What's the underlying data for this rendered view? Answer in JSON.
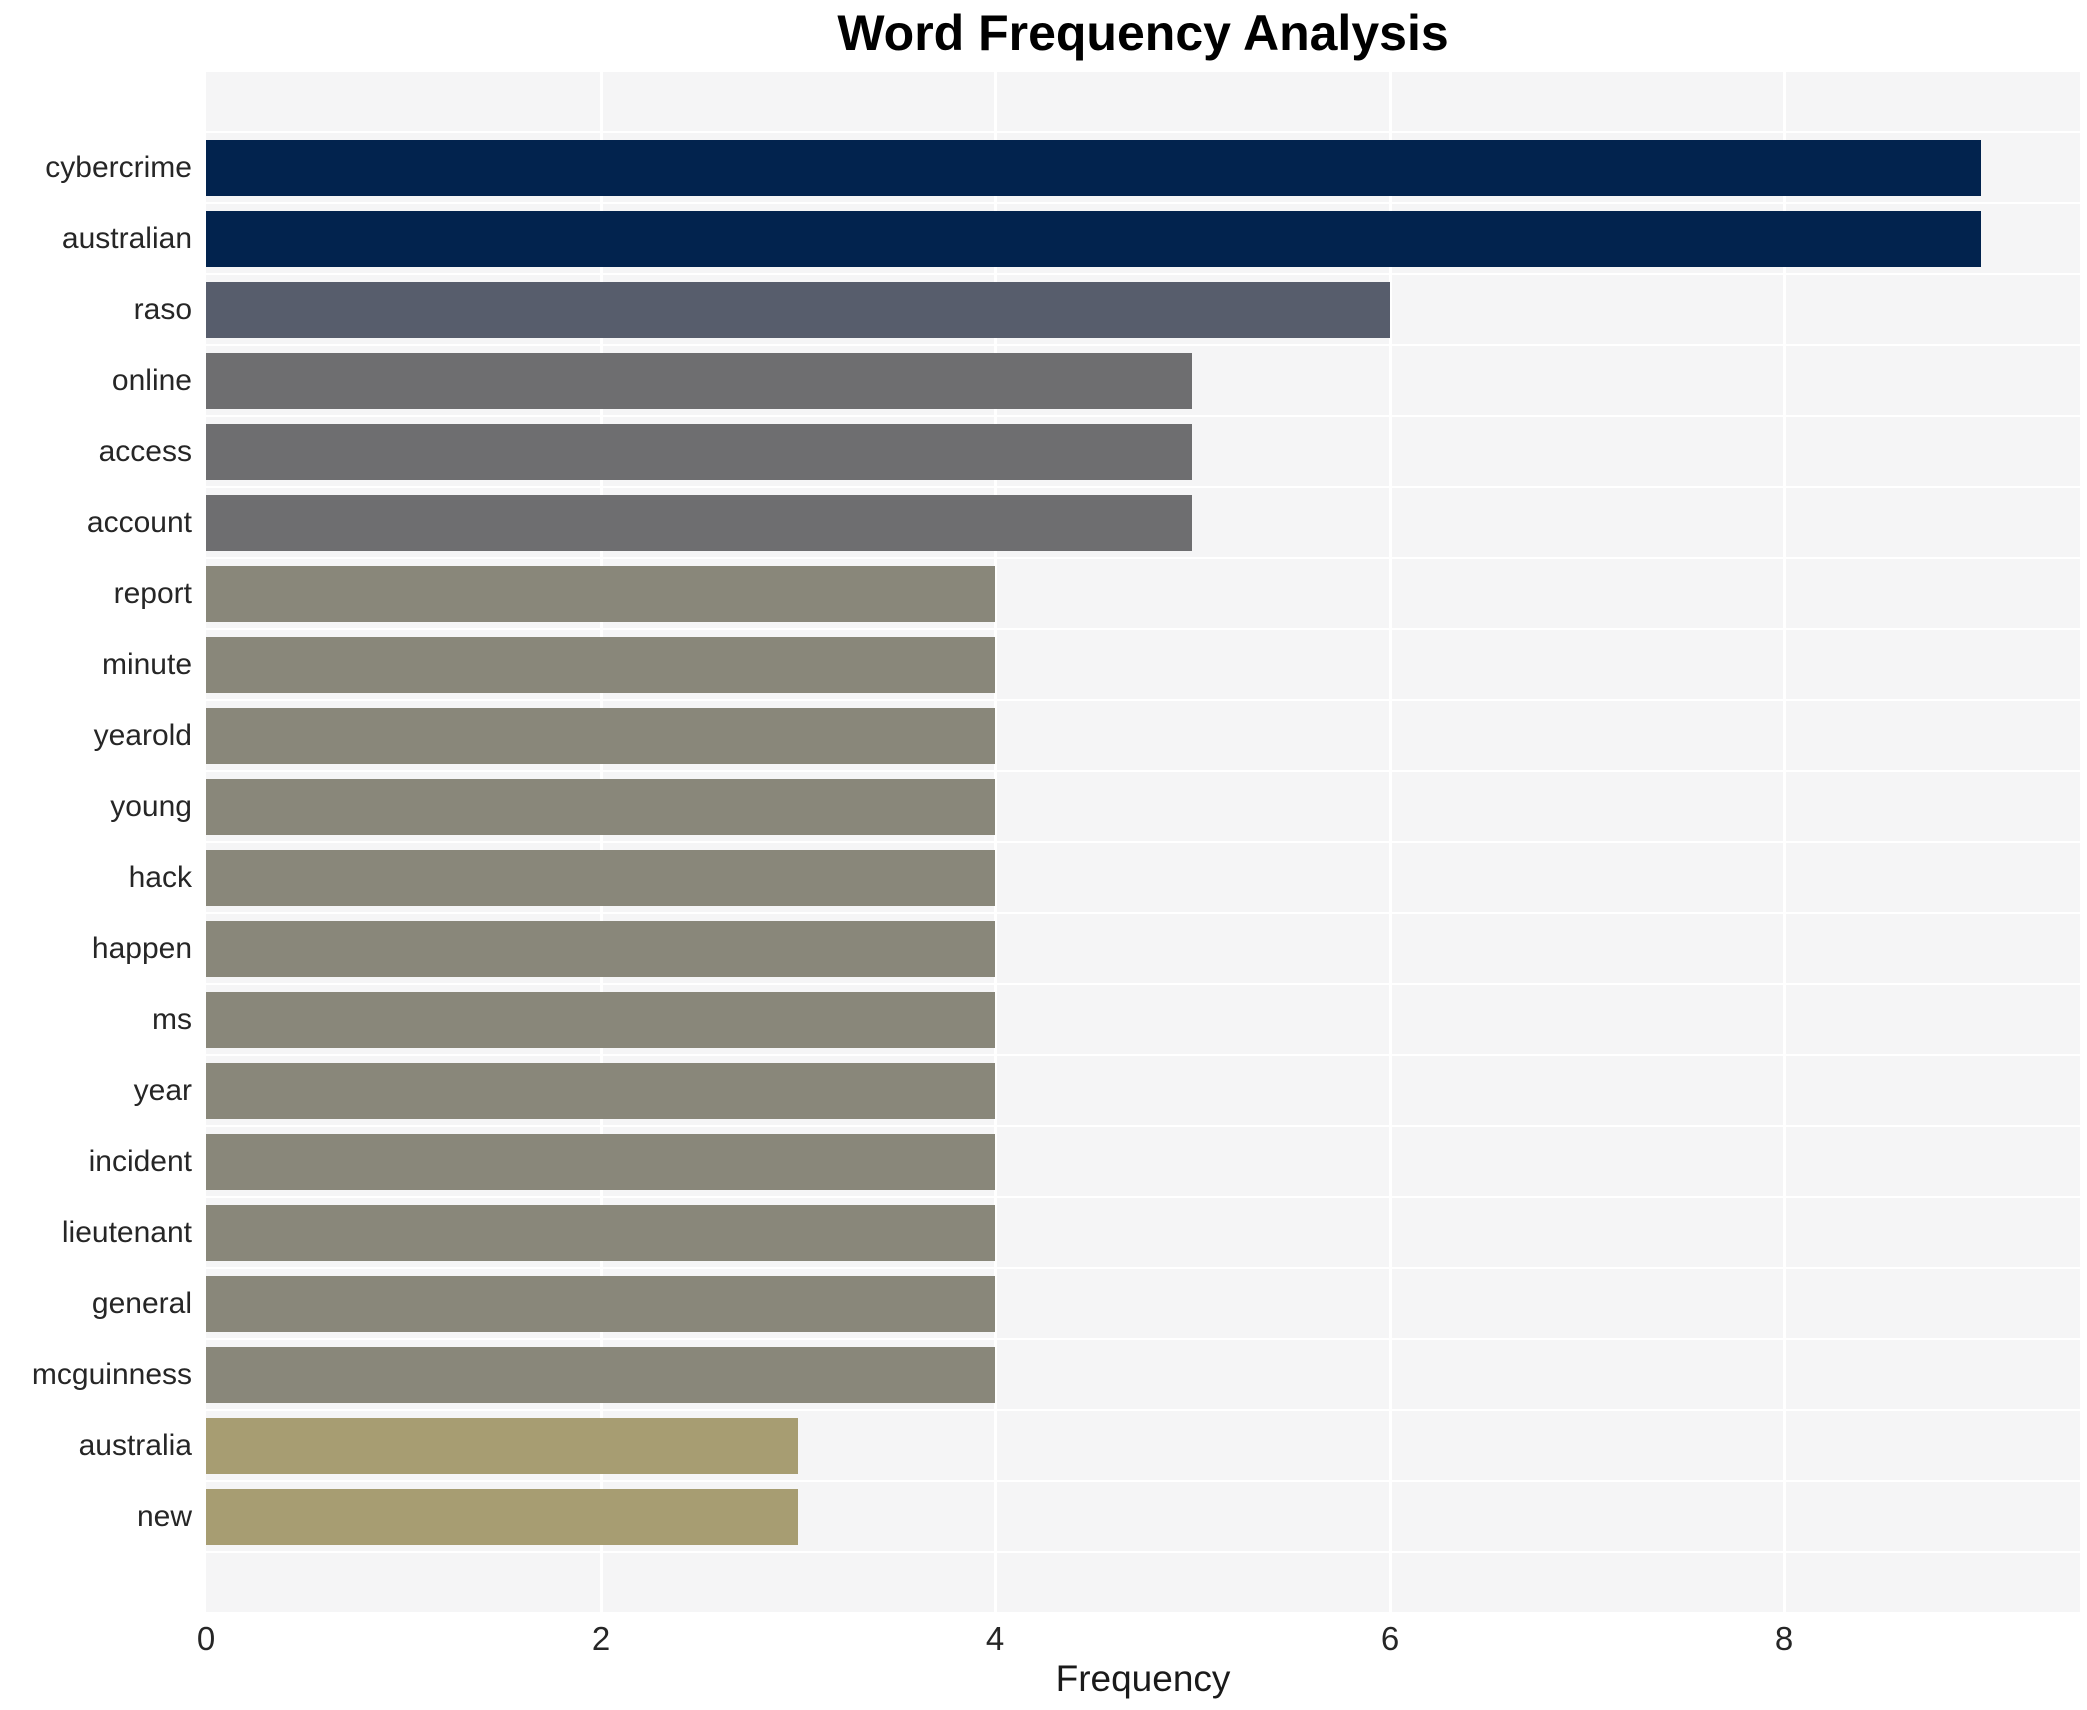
{
  "chart_data": {
    "type": "bar",
    "orientation": "horizontal",
    "title": "Word Frequency Analysis",
    "xlabel": "Frequency",
    "ylabel": "",
    "categories": [
      "cybercrime",
      "australian",
      "raso",
      "online",
      "access",
      "account",
      "report",
      "minute",
      "yearold",
      "young",
      "hack",
      "happen",
      "ms",
      "year",
      "incident",
      "lieutenant",
      "general",
      "mcguinness",
      "australia",
      "new"
    ],
    "values": [
      9,
      9,
      6,
      5,
      5,
      5,
      4,
      4,
      4,
      4,
      4,
      4,
      4,
      4,
      4,
      4,
      4,
      4,
      3,
      3
    ],
    "xlim": [
      0,
      9.5
    ],
    "xticks": [
      0,
      2,
      4,
      6,
      8
    ],
    "grid": true,
    "legend_position": "none",
    "colors": {
      "bar_by_value": {
        "9": "#02234e",
        "6": "#575d6c",
        "5": "#6e6e70",
        "4": "#89877a",
        "3": "#a79d72"
      },
      "plot_background": "#f5f5f6",
      "gridline": "#ffffff",
      "text": "#262626"
    }
  }
}
